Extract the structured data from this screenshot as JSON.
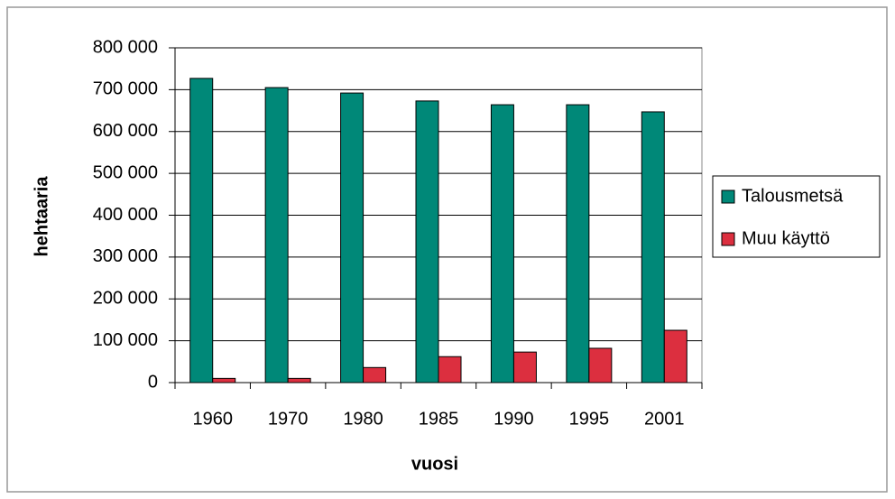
{
  "chart_data": {
    "type": "bar",
    "x_label": "vuosi",
    "y_label": "hehtaaria",
    "categories": [
      "1960",
      "1970",
      "1980",
      "1985",
      "1990",
      "1995",
      "2001"
    ],
    "series": [
      {
        "name": "Talousmetsä",
        "color": "#008878",
        "values": [
          727000,
          705000,
          692000,
          673000,
          664000,
          664000,
          647000
        ]
      },
      {
        "name": "Muu käyttö",
        "color": "#dc2f3f",
        "values": [
          10000,
          10000,
          36000,
          62000,
          73000,
          82000,
          125000
        ]
      }
    ],
    "ylim": [
      0,
      800000
    ],
    "yticks": [
      0,
      {
        "value": 100000,
        "label": "100 000"
      },
      {
        "value": 200000,
        "label": "200 000"
      },
      {
        "value": 300000,
        "label": "300 000"
      },
      {
        "value": 400000,
        "label": "400 000"
      },
      {
        "value": 500000,
        "label": "500 000"
      },
      {
        "value": 600000,
        "label": "600 000"
      },
      {
        "value": 700000,
        "label": "700 000"
      },
      {
        "value": 800000,
        "label": "800 000"
      }
    ],
    "grid": true,
    "legend": "right"
  }
}
